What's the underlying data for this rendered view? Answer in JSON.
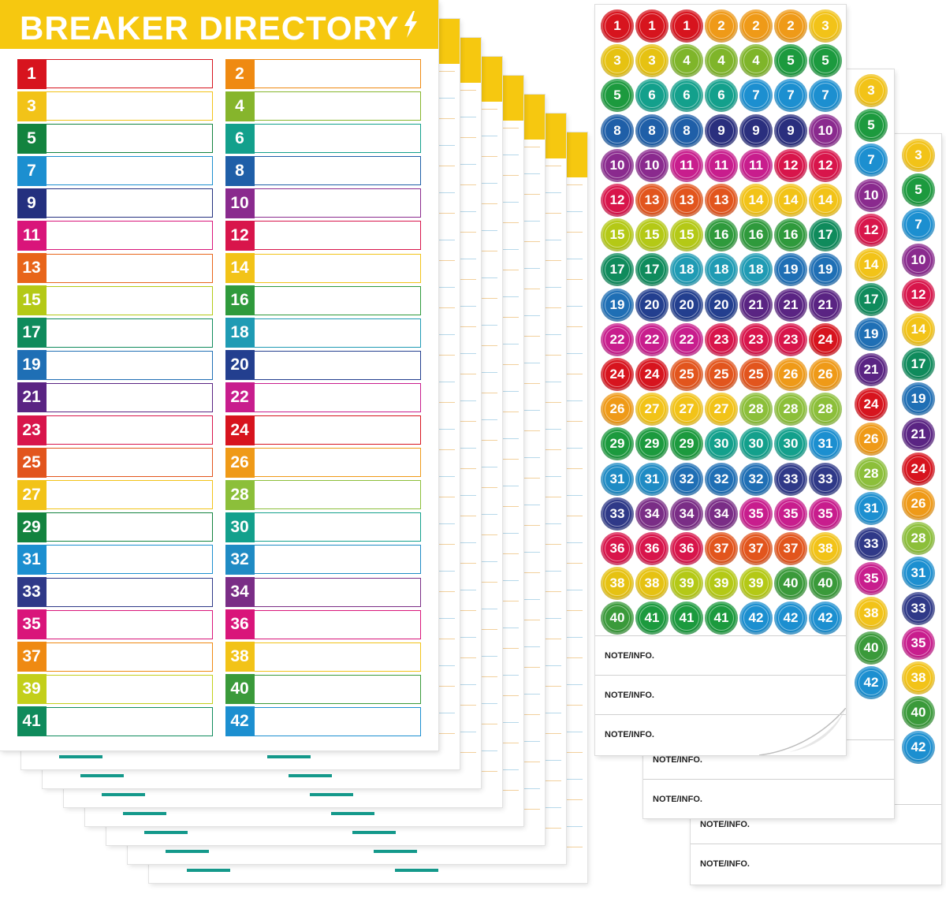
{
  "directory": {
    "title": "BREAKER DIRECTORY",
    "left_rows": [
      {
        "n": "1",
        "c": "#d7141e"
      },
      {
        "n": "3",
        "c": "#f2c318"
      },
      {
        "n": "5",
        "c": "#13833f"
      },
      {
        "n": "7",
        "c": "#1c8fd0"
      },
      {
        "n": "9",
        "c": "#24307f"
      },
      {
        "n": "11",
        "c": "#d9157a"
      },
      {
        "n": "13",
        "c": "#e8651a"
      },
      {
        "n": "15",
        "c": "#b4c916"
      },
      {
        "n": "17",
        "c": "#0f8b5c"
      },
      {
        "n": "19",
        "c": "#1f6fb5"
      },
      {
        "n": "21",
        "c": "#5a2483"
      },
      {
        "n": "23",
        "c": "#d8154b"
      },
      {
        "n": "25",
        "c": "#e2551d"
      },
      {
        "n": "27",
        "c": "#f2c318"
      },
      {
        "n": "29",
        "c": "#13833f"
      },
      {
        "n": "31",
        "c": "#1c8fd0"
      },
      {
        "n": "33",
        "c": "#2f3988"
      },
      {
        "n": "35",
        "c": "#d9157a"
      },
      {
        "n": "37",
        "c": "#ef8a12"
      },
      {
        "n": "39",
        "c": "#c3cf1a"
      },
      {
        "n": "41",
        "c": "#0f8b5c"
      }
    ],
    "right_rows": [
      {
        "n": "2",
        "c": "#ef8a12"
      },
      {
        "n": "4",
        "c": "#86b52c"
      },
      {
        "n": "6",
        "c": "#13a08c"
      },
      {
        "n": "8",
        "c": "#1f5fa8"
      },
      {
        "n": "10",
        "c": "#8a2a8e"
      },
      {
        "n": "12",
        "c": "#d8154b"
      },
      {
        "n": "14",
        "c": "#f2c318"
      },
      {
        "n": "16",
        "c": "#2f9a3c"
      },
      {
        "n": "18",
        "c": "#1f9bb4"
      },
      {
        "n": "20",
        "c": "#233f8f"
      },
      {
        "n": "22",
        "c": "#c81d8d"
      },
      {
        "n": "24",
        "c": "#d7141e"
      },
      {
        "n": "26",
        "c": "#ef9a18"
      },
      {
        "n": "28",
        "c": "#8cbf3a"
      },
      {
        "n": "30",
        "c": "#13a08c"
      },
      {
        "n": "32",
        "c": "#1f8bc4"
      },
      {
        "n": "34",
        "c": "#7a2d86"
      },
      {
        "n": "36",
        "c": "#d9157a"
      },
      {
        "n": "38",
        "c": "#f2c318"
      },
      {
        "n": "40",
        "c": "#3a9a3a"
      },
      {
        "n": "42",
        "c": "#1c8fd0"
      }
    ]
  },
  "stickers": {
    "front_rows": [
      [
        [
          "1",
          "#d7141e"
        ],
        [
          "1",
          "#d7141e"
        ],
        [
          "1",
          "#d7141e"
        ],
        [
          "2",
          "#ef9a18"
        ],
        [
          "2",
          "#ef9a18"
        ],
        [
          "2",
          "#ef9a18"
        ],
        [
          "3",
          "#f2c318"
        ]
      ],
      [
        [
          "3",
          "#e6c212"
        ],
        [
          "3",
          "#e6c212"
        ],
        [
          "4",
          "#7fb52a"
        ],
        [
          "4",
          "#7fb52a"
        ],
        [
          "4",
          "#7fb52a"
        ],
        [
          "5",
          "#1c9a3e"
        ],
        [
          "5",
          "#1c9a3e"
        ]
      ],
      [
        [
          "5",
          "#1c9a3e"
        ],
        [
          "6",
          "#13a08c"
        ],
        [
          "6",
          "#13a08c"
        ],
        [
          "6",
          "#13a08c"
        ],
        [
          "7",
          "#1c8fd0"
        ],
        [
          "7",
          "#1c8fd0"
        ],
        [
          "7",
          "#1c8fd0"
        ]
      ],
      [
        [
          "8",
          "#1f5fa8"
        ],
        [
          "8",
          "#1f5fa8"
        ],
        [
          "8",
          "#1f5fa8"
        ],
        [
          "9",
          "#2a2f7e"
        ],
        [
          "9",
          "#2a2f7e"
        ],
        [
          "9",
          "#2a2f7e"
        ],
        [
          "10",
          "#8a2a8e"
        ]
      ],
      [
        [
          "10",
          "#8a2a8e"
        ],
        [
          "10",
          "#8a2a8e"
        ],
        [
          "11",
          "#c81d8d"
        ],
        [
          "11",
          "#c81d8d"
        ],
        [
          "11",
          "#c81d8d"
        ],
        [
          "12",
          "#d8154b"
        ],
        [
          "12",
          "#d8154b"
        ]
      ],
      [
        [
          "12",
          "#d8154b"
        ],
        [
          "13",
          "#e2551d"
        ],
        [
          "13",
          "#e2551d"
        ],
        [
          "13",
          "#e2551d"
        ],
        [
          "14",
          "#f2c318"
        ],
        [
          "14",
          "#f2c318"
        ],
        [
          "14",
          "#f2c318"
        ]
      ],
      [
        [
          "15",
          "#b4c916"
        ],
        [
          "15",
          "#b4c916"
        ],
        [
          "15",
          "#b4c916"
        ],
        [
          "16",
          "#2f9a3c"
        ],
        [
          "16",
          "#2f9a3c"
        ],
        [
          "16",
          "#2f9a3c"
        ],
        [
          "17",
          "#0f8b5c"
        ]
      ],
      [
        [
          "17",
          "#0f8b5c"
        ],
        [
          "17",
          "#0f8b5c"
        ],
        [
          "18",
          "#1f9bb4"
        ],
        [
          "18",
          "#1f9bb4"
        ],
        [
          "18",
          "#1f9bb4"
        ],
        [
          "19",
          "#1f6fb5"
        ],
        [
          "19",
          "#1f6fb5"
        ]
      ],
      [
        [
          "19",
          "#1f6fb5"
        ],
        [
          "20",
          "#233f8f"
        ],
        [
          "20",
          "#233f8f"
        ],
        [
          "20",
          "#233f8f"
        ],
        [
          "21",
          "#5a2483"
        ],
        [
          "21",
          "#5a2483"
        ],
        [
          "21",
          "#5a2483"
        ]
      ],
      [
        [
          "22",
          "#c81d8d"
        ],
        [
          "22",
          "#c81d8d"
        ],
        [
          "22",
          "#c81d8d"
        ],
        [
          "23",
          "#d8154b"
        ],
        [
          "23",
          "#d8154b"
        ],
        [
          "23",
          "#d8154b"
        ],
        [
          "24",
          "#d7141e"
        ]
      ],
      [
        [
          "24",
          "#d7141e"
        ],
        [
          "24",
          "#d7141e"
        ],
        [
          "25",
          "#e2551d"
        ],
        [
          "25",
          "#e2551d"
        ],
        [
          "25",
          "#e2551d"
        ],
        [
          "26",
          "#ef9a18"
        ],
        [
          "26",
          "#ef9a18"
        ]
      ],
      [
        [
          "26",
          "#ef9a18"
        ],
        [
          "27",
          "#f2c318"
        ],
        [
          "27",
          "#f2c318"
        ],
        [
          "27",
          "#f2c318"
        ],
        [
          "28",
          "#8cbf3a"
        ],
        [
          "28",
          "#8cbf3a"
        ],
        [
          "28",
          "#8cbf3a"
        ]
      ],
      [
        [
          "29",
          "#1c9a3e"
        ],
        [
          "29",
          "#1c9a3e"
        ],
        [
          "29",
          "#1c9a3e"
        ],
        [
          "30",
          "#13a08c"
        ],
        [
          "30",
          "#13a08c"
        ],
        [
          "30",
          "#13a08c"
        ],
        [
          "31",
          "#1c8fd0"
        ]
      ],
      [
        [
          "31",
          "#1f8bc4"
        ],
        [
          "31",
          "#1f8bc4"
        ],
        [
          "32",
          "#1f6fb5"
        ],
        [
          "32",
          "#1f6fb5"
        ],
        [
          "32",
          "#1f6fb5"
        ],
        [
          "33",
          "#2f3988"
        ],
        [
          "33",
          "#2f3988"
        ]
      ],
      [
        [
          "33",
          "#2f3988"
        ],
        [
          "34",
          "#7a2d86"
        ],
        [
          "34",
          "#7a2d86"
        ],
        [
          "34",
          "#7a2d86"
        ],
        [
          "35",
          "#c81d8d"
        ],
        [
          "35",
          "#c81d8d"
        ],
        [
          "35",
          "#c81d8d"
        ]
      ],
      [
        [
          "36",
          "#d8154b"
        ],
        [
          "36",
          "#d8154b"
        ],
        [
          "36",
          "#d8154b"
        ],
        [
          "37",
          "#e2551d"
        ],
        [
          "37",
          "#e2551d"
        ],
        [
          "37",
          "#e2551d"
        ],
        [
          "38",
          "#f2c318"
        ]
      ],
      [
        [
          "38",
          "#e6c212"
        ],
        [
          "38",
          "#e6c212"
        ],
        [
          "39",
          "#b4c916"
        ],
        [
          "39",
          "#b4c916"
        ],
        [
          "39",
          "#b4c916"
        ],
        [
          "40",
          "#3a9a3a"
        ],
        [
          "40",
          "#3a9a3a"
        ]
      ],
      [
        [
          "40",
          "#3a9a3a"
        ],
        [
          "41",
          "#1c9a3e"
        ],
        [
          "41",
          "#1c9a3e"
        ],
        [
          "41",
          "#1c9a3e"
        ],
        [
          "42",
          "#1c8fd0"
        ],
        [
          "42",
          "#1c8fd0"
        ],
        [
          "42",
          "#1c8fd0"
        ]
      ]
    ],
    "mid_col": [
      [
        "3",
        "#f2c318"
      ],
      [
        "5",
        "#1c9a3e"
      ],
      [
        "7",
        "#1c8fd0"
      ],
      [
        "10",
        "#8a2a8e"
      ],
      [
        "12",
        "#d8154b"
      ],
      [
        "14",
        "#f2c318"
      ],
      [
        "17",
        "#0f8b5c"
      ],
      [
        "19",
        "#1f6fb5"
      ],
      [
        "21",
        "#5a2483"
      ],
      [
        "24",
        "#d7141e"
      ],
      [
        "26",
        "#ef9a18"
      ],
      [
        "28",
        "#8cbf3a"
      ],
      [
        "31",
        "#1c8fd0"
      ],
      [
        "33",
        "#2f3988"
      ],
      [
        "35",
        "#c81d8d"
      ],
      [
        "38",
        "#f2c318"
      ],
      [
        "40",
        "#3a9a3a"
      ],
      [
        "42",
        "#1c8fd0"
      ]
    ],
    "back_col": [
      [
        "3",
        "#f2c318"
      ],
      [
        "5",
        "#1c9a3e"
      ],
      [
        "7",
        "#1c8fd0"
      ],
      [
        "10",
        "#8a2a8e"
      ],
      [
        "12",
        "#d8154b"
      ],
      [
        "14",
        "#f2c318"
      ],
      [
        "17",
        "#0f8b5c"
      ],
      [
        "19",
        "#1f6fb5"
      ],
      [
        "21",
        "#5a2483"
      ],
      [
        "24",
        "#d7141e"
      ],
      [
        "26",
        "#ef9a18"
      ],
      [
        "28",
        "#8cbf3a"
      ],
      [
        "31",
        "#1c8fd0"
      ],
      [
        "33",
        "#2f3988"
      ],
      [
        "35",
        "#c81d8d"
      ],
      [
        "38",
        "#f2c318"
      ],
      [
        "40",
        "#3a9a3a"
      ],
      [
        "42",
        "#1c8fd0"
      ]
    ],
    "note_label": "NOTE/INFO."
  }
}
